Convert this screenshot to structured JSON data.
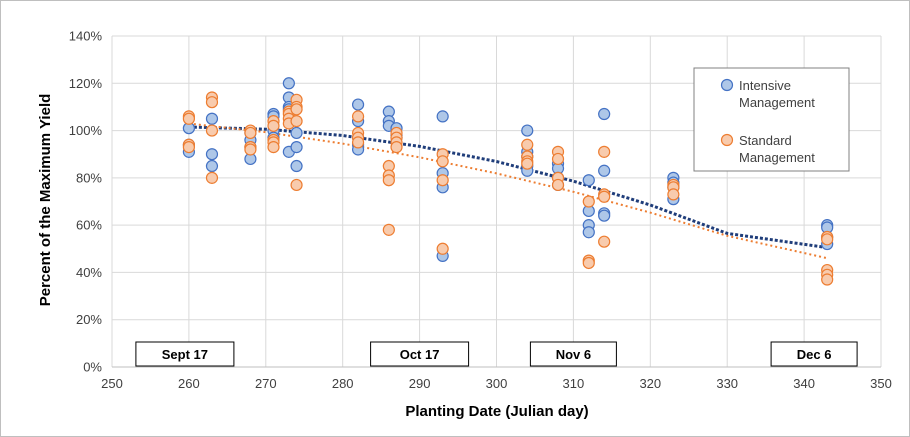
{
  "chart_data": {
    "type": "scatter",
    "title": "",
    "xlabel": "Planting Date (Julian day)",
    "ylabel": "Percent of the Maximum Yield",
    "xlim": [
      250,
      350
    ],
    "ylim": [
      0,
      140
    ],
    "x_ticks": [
      250,
      260,
      270,
      280,
      290,
      300,
      310,
      320,
      330,
      340,
      350
    ],
    "y_ticks": [
      0,
      20,
      40,
      60,
      80,
      100,
      120,
      140
    ],
    "y_tick_labels": [
      "0%",
      "20%",
      "40%",
      "60%",
      "80%",
      "100%",
      "120%",
      "140%"
    ],
    "grid": "vertical and horizontal",
    "legend_position": "top-right",
    "series": [
      {
        "name": "Intensive Management",
        "marker_fill": "#aec7e8",
        "marker_edge": "#4472c4",
        "trendline_color": "#1f3d7a",
        "trendline": [
          [
            260,
            101.5
          ],
          [
            270,
            100.6
          ],
          [
            280,
            97.9
          ],
          [
            290,
            93.3
          ],
          [
            300,
            86.9
          ],
          [
            310,
            78.6
          ],
          [
            320,
            68.5
          ],
          [
            330,
            56.5
          ],
          [
            343,
            50.5
          ]
        ],
        "points": [
          [
            260,
            101
          ],
          [
            260,
            94
          ],
          [
            260,
            91
          ],
          [
            263,
            105
          ],
          [
            263,
            90
          ],
          [
            263,
            85
          ],
          [
            268,
            99
          ],
          [
            268,
            96
          ],
          [
            268,
            93
          ],
          [
            268,
            88
          ],
          [
            271,
            107
          ],
          [
            271,
            106
          ],
          [
            271,
            100
          ],
          [
            271,
            97
          ],
          [
            273,
            120
          ],
          [
            273,
            114
          ],
          [
            273,
            110
          ],
          [
            273,
            109
          ],
          [
            273,
            91
          ],
          [
            274,
            99
          ],
          [
            274,
            93
          ],
          [
            274,
            85
          ],
          [
            282,
            111
          ],
          [
            282,
            104
          ],
          [
            282,
            97
          ],
          [
            282,
            94
          ],
          [
            282,
            92
          ],
          [
            286,
            108
          ],
          [
            286,
            104
          ],
          [
            286,
            102
          ],
          [
            287,
            101
          ],
          [
            287,
            98
          ],
          [
            287,
            97
          ],
          [
            293,
            106
          ],
          [
            293,
            82
          ],
          [
            293,
            76
          ],
          [
            293,
            47
          ],
          [
            304,
            100
          ],
          [
            304,
            91
          ],
          [
            304,
            89
          ],
          [
            304,
            85
          ],
          [
            304,
            83
          ],
          [
            308,
            86
          ],
          [
            308,
            84
          ],
          [
            308,
            80
          ],
          [
            308,
            77
          ],
          [
            312,
            79
          ],
          [
            312,
            66
          ],
          [
            312,
            60
          ],
          [
            312,
            57
          ],
          [
            314,
            107
          ],
          [
            314,
            83
          ],
          [
            314,
            65
          ],
          [
            314,
            64
          ],
          [
            323,
            80
          ],
          [
            323,
            78
          ],
          [
            323,
            76
          ],
          [
            323,
            71
          ],
          [
            343,
            60
          ],
          [
            343,
            59
          ],
          [
            343,
            55
          ],
          [
            343,
            52
          ]
        ]
      },
      {
        "name": "Standard Management",
        "marker_fill": "#f8cbad",
        "marker_edge": "#ed7d31",
        "trendline_color": "#ed7d31",
        "trendline": [
          [
            260,
            103
          ],
          [
            270,
            99.3
          ],
          [
            280,
            94.5
          ],
          [
            290,
            88.7
          ],
          [
            300,
            81.9
          ],
          [
            310,
            74.1
          ],
          [
            320,
            65.3
          ],
          [
            330,
            55.5
          ],
          [
            343,
            46
          ]
        ],
        "points": [
          [
            260,
            106
          ],
          [
            260,
            105
          ],
          [
            260,
            94
          ],
          [
            260,
            93
          ],
          [
            263,
            114
          ],
          [
            263,
            112
          ],
          [
            263,
            100
          ],
          [
            263,
            80
          ],
          [
            268,
            100
          ],
          [
            268,
            99
          ],
          [
            268,
            93
          ],
          [
            268,
            92
          ],
          [
            271,
            104
          ],
          [
            271,
            102
          ],
          [
            271,
            96
          ],
          [
            271,
            95
          ],
          [
            271,
            93
          ],
          [
            273,
            108
          ],
          [
            273,
            107
          ],
          [
            273,
            105
          ],
          [
            273,
            103
          ],
          [
            274,
            113
          ],
          [
            274,
            110
          ],
          [
            274,
            109
          ],
          [
            274,
            104
          ],
          [
            274,
            77
          ],
          [
            282,
            106
          ],
          [
            282,
            99
          ],
          [
            282,
            97
          ],
          [
            282,
            95
          ],
          [
            286,
            85
          ],
          [
            286,
            81
          ],
          [
            286,
            79
          ],
          [
            286,
            58
          ],
          [
            287,
            99
          ],
          [
            287,
            97
          ],
          [
            287,
            95
          ],
          [
            287,
            93
          ],
          [
            293,
            90
          ],
          [
            293,
            87
          ],
          [
            293,
            79
          ],
          [
            293,
            50
          ],
          [
            304,
            94
          ],
          [
            304,
            89
          ],
          [
            304,
            87
          ],
          [
            304,
            86
          ],
          [
            308,
            91
          ],
          [
            308,
            88
          ],
          [
            308,
            80
          ],
          [
            308,
            77
          ],
          [
            312,
            70
          ],
          [
            312,
            45
          ],
          [
            312,
            44
          ],
          [
            314,
            91
          ],
          [
            314,
            73
          ],
          [
            314,
            72
          ],
          [
            314,
            53
          ],
          [
            323,
            77
          ],
          [
            323,
            76
          ],
          [
            323,
            73
          ],
          [
            343,
            55
          ],
          [
            343,
            54
          ],
          [
            343,
            41
          ],
          [
            343,
            39
          ],
          [
            343,
            37
          ]
        ]
      }
    ],
    "annotations": [
      {
        "text": "Sept 17",
        "x": 260
      },
      {
        "text": "Oct 17",
        "x": 290
      },
      {
        "text": "Nov 6",
        "x": 310
      },
      {
        "text": "Dec 6",
        "x": 340
      }
    ]
  }
}
